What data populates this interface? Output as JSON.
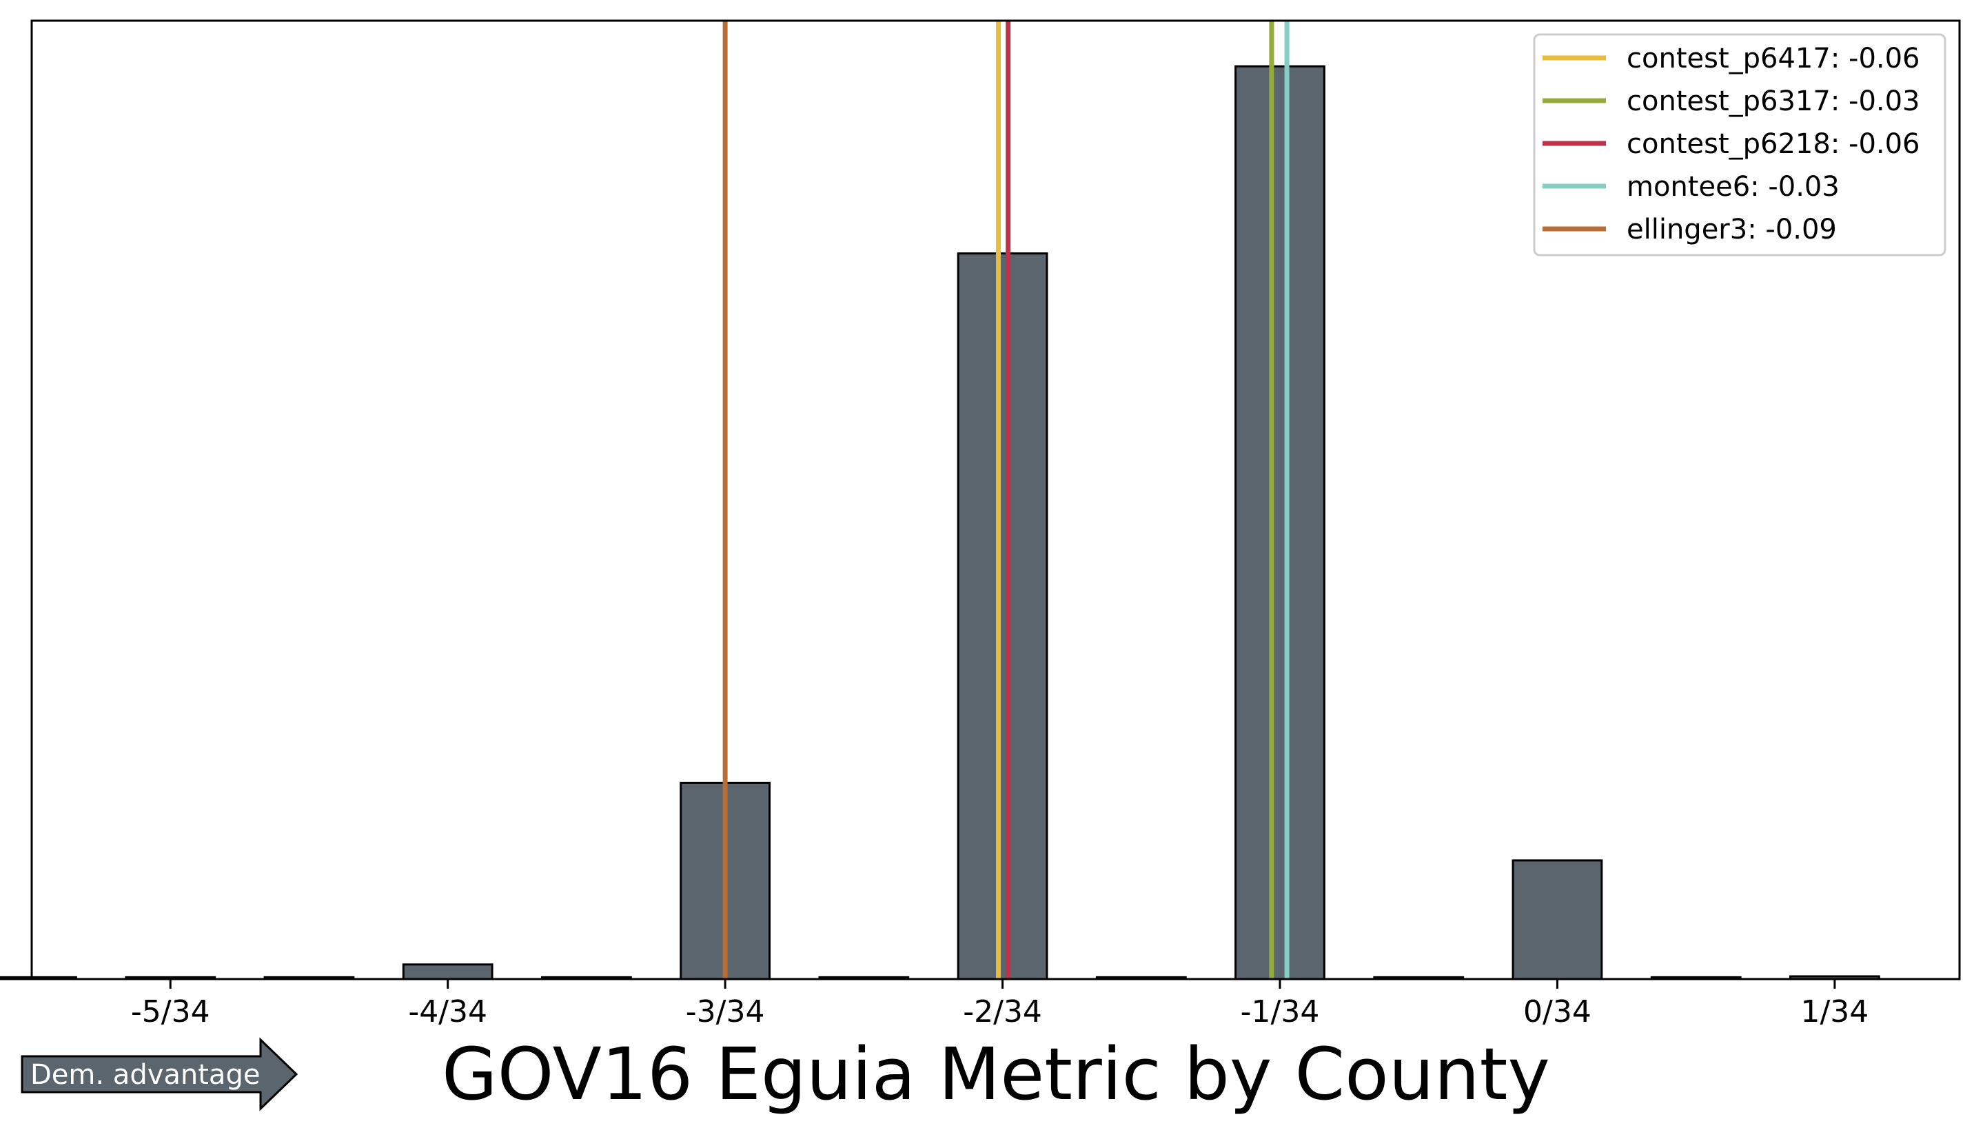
{
  "chart_data": {
    "type": "bar",
    "title": "GOV16 Eguia Metric by County",
    "xlabel": "",
    "ylabel": "",
    "x_ticks": [
      -5,
      -4,
      -3,
      -2,
      -1,
      0,
      1
    ],
    "x_tick_labels": [
      "-5/34",
      "-4/34",
      "-3/34",
      "-2/34",
      "-1/34",
      "0/34",
      "1/34"
    ],
    "xlim": [
      -5.5,
      1.45
    ],
    "ylim": [
      0,
      1.05
    ],
    "y_ticks_visible": false,
    "grid": false,
    "bins": [
      {
        "center": -5.5,
        "value": 0.002
      },
      {
        "center": -5,
        "value": 0.002
      },
      {
        "center": -4.5,
        "value": 0.002
      },
      {
        "center": -4,
        "value": 0.016
      },
      {
        "center": -3.5,
        "value": 0.002
      },
      {
        "center": -3,
        "value": 0.215
      },
      {
        "center": -2.5,
        "value": 0.002
      },
      {
        "center": -2,
        "value": 0.795
      },
      {
        "center": -1.5,
        "value": 0.002
      },
      {
        "center": -1,
        "value": 1.0
      },
      {
        "center": -0.5,
        "value": 0.002
      },
      {
        "center": 0,
        "value": 0.13
      },
      {
        "center": 0.5,
        "value": 0.002
      },
      {
        "center": 1,
        "value": 0.003
      }
    ],
    "bar_width": 0.32,
    "bar_color": "#5b656d",
    "bar_edge_color": "#000000",
    "vertical_lines": [
      {
        "name": "contest_p6417: -0.06",
        "x": -2.015,
        "color": "#e8bd3f"
      },
      {
        "name": "contest_p6317: -0.03",
        "x": -1.03,
        "color": "#94ad3a"
      },
      {
        "name": "contest_p6218: -0.06",
        "x": -1.98,
        "color": "#c0324a"
      },
      {
        "name": "montee6: -0.03",
        "x": -0.975,
        "color": "#86cec4"
      },
      {
        "name": "ellinger3: -0.09",
        "x": -3.0,
        "color": "#b96d36"
      }
    ],
    "legend_placement": "top-right"
  },
  "annotation": {
    "arrow_label": "Dem. advantage",
    "arrow_color": "#5b656d"
  }
}
